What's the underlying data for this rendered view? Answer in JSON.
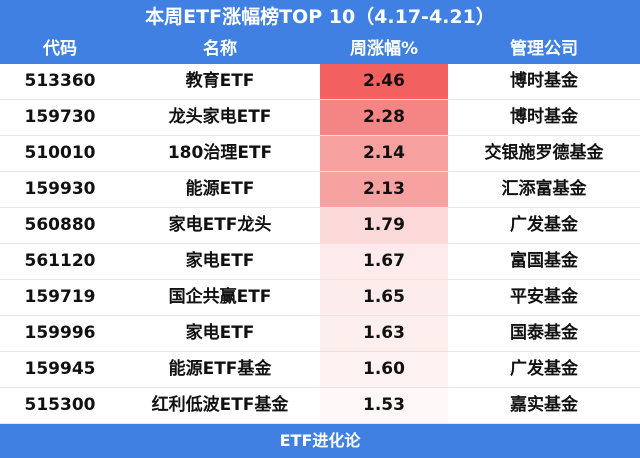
{
  "title": "本周ETF涨幅榜TOP 10（4.17-4.21）",
  "table": {
    "header": [
      "代码",
      "名称",
      "周涨幅%",
      "管理公司"
    ],
    "rows": [
      [
        "513360",
        "教育ETF",
        "2.46",
        "博时基金"
      ],
      [
        "159730",
        "龙头家电ETF",
        "2.28",
        "博时基金"
      ],
      [
        "510010",
        "180治理ETF",
        "2.14",
        "交银施罗德基金"
      ],
      [
        "159930",
        "能源ETF",
        "2.13",
        "汇添富基金"
      ],
      [
        "560880",
        "家电ETF龙头",
        "1.79",
        "广发基金"
      ],
      [
        "561120",
        "家电ETF",
        "1.67",
        "富国基金"
      ],
      [
        "159719",
        "国企共赢ETF",
        "1.65",
        "平安基金"
      ],
      [
        "159996",
        "家电ETF",
        "1.63",
        "国泰基金"
      ],
      [
        "159945",
        "能源ETF基金",
        "1.60",
        "广发基金"
      ],
      [
        "515300",
        "红利低波ETF基金",
        "1.53",
        "嘉实基金"
      ]
    ]
  },
  "footer": "ETF进化论"
}
